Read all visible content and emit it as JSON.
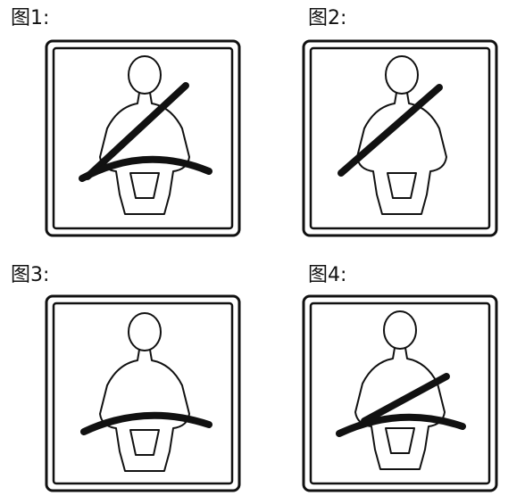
{
  "figures": [
    {
      "label": "图1:",
      "belt": "correct-lap-and-shoulder"
    },
    {
      "label": "图2:",
      "belt": "shoulder-only"
    },
    {
      "label": "图3:",
      "belt": "lap-only"
    },
    {
      "label": "图4:",
      "belt": "shoulder-under-arm"
    }
  ],
  "colors": {
    "ink": "#111111",
    "background": "#ffffff"
  }
}
